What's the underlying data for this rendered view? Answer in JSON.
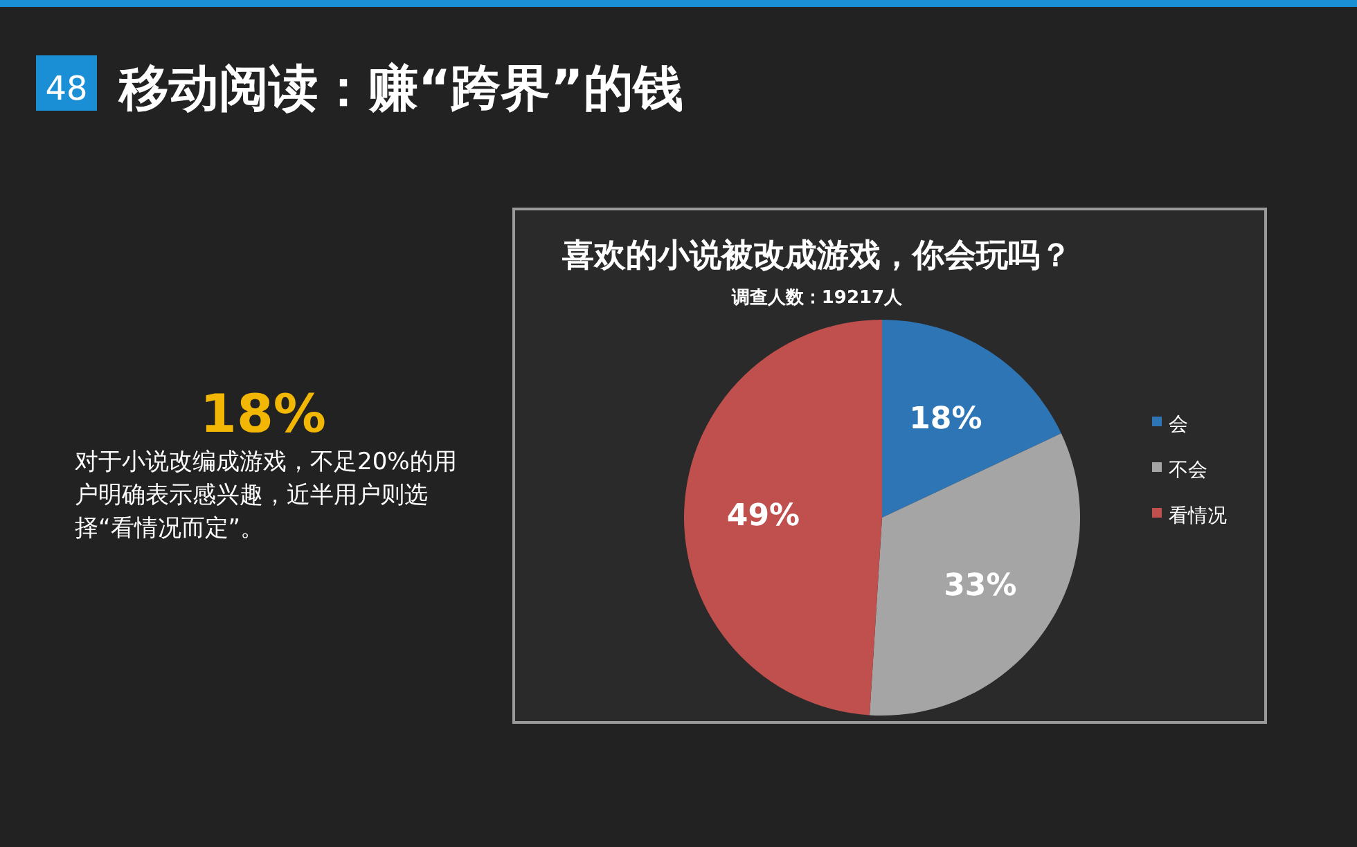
{
  "chart_data": {
    "type": "pie",
    "title": "喜欢的小说被改成游戏，你会玩吗？",
    "subtitle": "调查人数：19217人",
    "categories": [
      "会",
      "不会",
      "看情况"
    ],
    "values": [
      18,
      33,
      49
    ],
    "colors": [
      "#2e75b6",
      "#a5a5a5",
      "#c0504d"
    ],
    "value_labels": [
      "18%",
      "33%",
      "49%"
    ],
    "legend": "right",
    "annotations": [
      "48",
      "移动阅读：赚“跨界”的钱",
      "18%",
      "对于小说改编成游戏，不足20%的用户明确表示感兴趣，近半用户则选择“看情况而定”。"
    ]
  }
}
